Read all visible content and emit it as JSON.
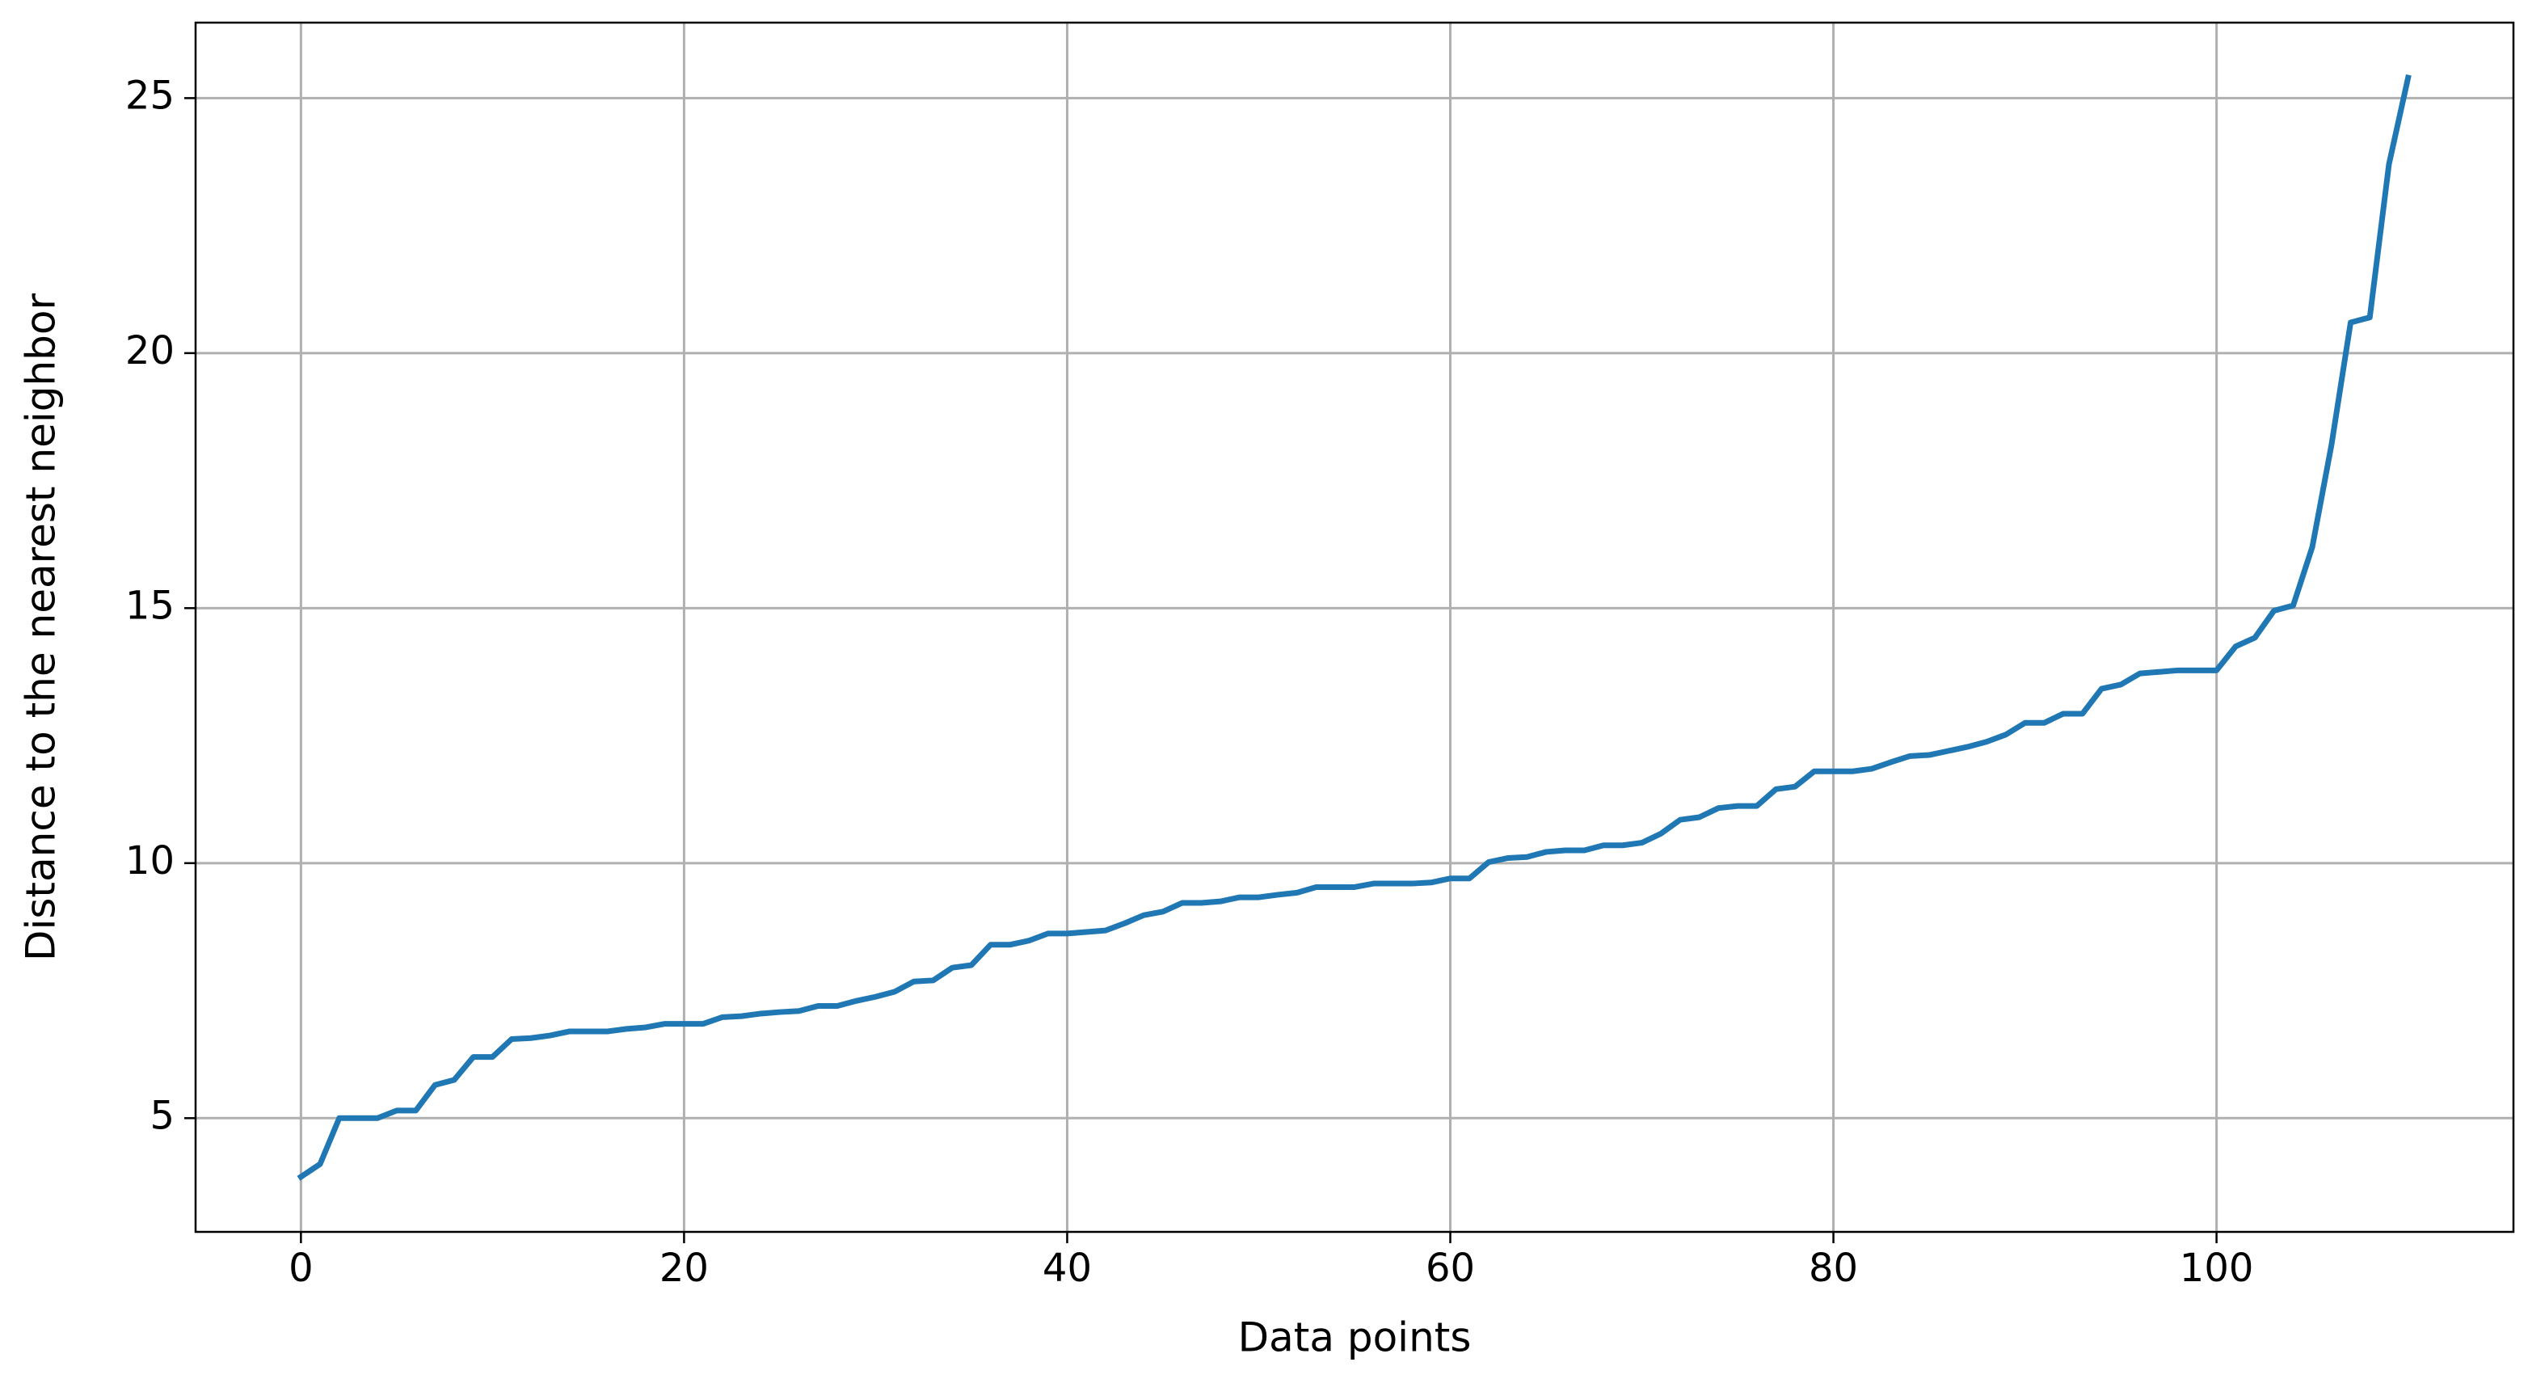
{
  "chart_data": {
    "type": "line",
    "xlabel": "Data points",
    "ylabel": "Distance to the nearest neighbor",
    "x": [
      0,
      1,
      2,
      3,
      4,
      5,
      6,
      7,
      8,
      9,
      10,
      11,
      12,
      13,
      14,
      15,
      16,
      17,
      18,
      19,
      20,
      21,
      22,
      23,
      24,
      25,
      26,
      27,
      28,
      29,
      30,
      31,
      32,
      33,
      34,
      35,
      36,
      37,
      38,
      39,
      40,
      41,
      42,
      43,
      44,
      45,
      46,
      47,
      48,
      49,
      50,
      51,
      52,
      53,
      54,
      55,
      56,
      57,
      58,
      59,
      60,
      61,
      62,
      63,
      64,
      65,
      66,
      67,
      68,
      69,
      70,
      71,
      72,
      73,
      74,
      75,
      76,
      77,
      78,
      79,
      80,
      81,
      82,
      83,
      84,
      85,
      86,
      87,
      88,
      89,
      90,
      91,
      92,
      93,
      94,
      95,
      96,
      97,
      98,
      99,
      100,
      101,
      102,
      103,
      104,
      105,
      106,
      107,
      108,
      109,
      110
    ],
    "values": [
      3.85,
      4.1,
      5.0,
      5.0,
      5.0,
      5.15,
      5.15,
      5.65,
      5.75,
      6.2,
      6.2,
      6.55,
      6.57,
      6.62,
      6.7,
      6.7,
      6.7,
      6.75,
      6.78,
      6.85,
      6.85,
      6.85,
      6.98,
      7.0,
      7.05,
      7.08,
      7.1,
      7.2,
      7.2,
      7.3,
      7.38,
      7.48,
      7.68,
      7.7,
      7.95,
      8.0,
      8.4,
      8.4,
      8.48,
      8.62,
      8.62,
      8.65,
      8.68,
      8.82,
      8.98,
      9.05,
      9.22,
      9.22,
      9.25,
      9.33,
      9.33,
      9.38,
      9.42,
      9.53,
      9.53,
      9.53,
      9.6,
      9.6,
      9.6,
      9.62,
      9.7,
      9.7,
      10.02,
      10.1,
      10.12,
      10.22,
      10.25,
      10.25,
      10.35,
      10.35,
      10.4,
      10.58,
      10.85,
      10.9,
      11.08,
      11.12,
      11.12,
      11.45,
      11.5,
      11.8,
      11.8,
      11.8,
      11.85,
      11.98,
      12.1,
      12.12,
      12.2,
      12.28,
      12.38,
      12.52,
      12.75,
      12.75,
      12.93,
      12.93,
      13.42,
      13.5,
      13.72,
      13.75,
      13.78,
      13.78,
      13.78,
      14.25,
      14.42,
      14.95,
      15.05,
      16.2,
      18.2,
      20.6,
      20.7,
      23.7,
      25.4
    ],
    "color": "#1f77b4",
    "xlim": [
      -5.5,
      115.5
    ],
    "xticks": [
      0,
      20,
      40,
      60,
      80,
      100
    ],
    "ylim": [
      2.77,
      26.48
    ],
    "yticks": [
      5,
      10,
      15,
      20,
      25
    ],
    "grid": true
  }
}
